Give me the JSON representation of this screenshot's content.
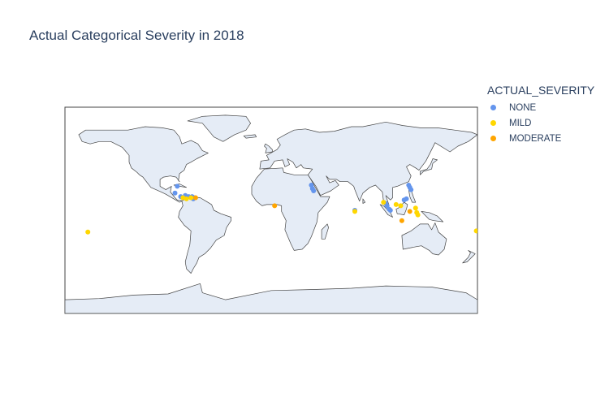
{
  "chart_data": {
    "type": "scatter",
    "projection": "equirectangular",
    "title": "Actual Categorical Severity in 2018",
    "legend": {
      "title": "ACTUAL_SEVERITY",
      "placement": "right"
    },
    "land_color": "#e5ecf6",
    "coastline_color": "#444444",
    "lon_range": [
      -180,
      180
    ],
    "lat_range": [
      -90,
      90
    ],
    "series": [
      {
        "name": "NONE",
        "color": "#6495ed",
        "points": [
          {
            "lon": -82,
            "lat": 21
          },
          {
            "lon": -84,
            "lat": 15
          },
          {
            "lon": -75,
            "lat": 13
          },
          {
            "lon": -72,
            "lat": 12
          },
          {
            "lon": -69,
            "lat": 12
          },
          {
            "lon": -68,
            "lat": 10
          },
          {
            "lon": -67,
            "lat": 11
          },
          {
            "lon": -79,
            "lat": 12
          },
          {
            "lon": 35,
            "lat": 22
          },
          {
            "lon": 36,
            "lat": 19
          },
          {
            "lon": 37,
            "lat": 17
          },
          {
            "lon": 120,
            "lat": 22
          },
          {
            "lon": 121,
            "lat": 20
          },
          {
            "lon": 122,
            "lat": 18
          },
          {
            "lon": 118,
            "lat": 10
          },
          {
            "lon": 116,
            "lat": 9
          },
          {
            "lon": 100,
            "lat": 6
          },
          {
            "lon": 101,
            "lat": 4
          },
          {
            "lon": 103,
            "lat": 1
          },
          {
            "lon": 104,
            "lat": 0
          },
          {
            "lon": 73,
            "lat": 0
          }
        ]
      },
      {
        "name": "MILD",
        "color": "#ffd700",
        "points": [
          {
            "lon": -77,
            "lat": 11
          },
          {
            "lon": -74,
            "lat": 10
          },
          {
            "lon": -70,
            "lat": 11
          },
          {
            "lon": 73,
            "lat": -1
          },
          {
            "lon": 98,
            "lat": 7
          },
          {
            "lon": 109,
            "lat": 5
          },
          {
            "lon": 113,
            "lat": 4
          },
          {
            "lon": 126,
            "lat": 2
          },
          {
            "lon": 127,
            "lat": -2
          },
          {
            "lon": 128,
            "lat": -4
          },
          {
            "lon": -160,
            "lat": -19
          },
          {
            "lon": 179,
            "lat": -18
          }
        ]
      },
      {
        "name": "MODERATE",
        "color": "#ffa500",
        "points": [
          {
            "lon": -66,
            "lat": 11
          },
          {
            "lon": 3,
            "lat": 4
          },
          {
            "lon": 114,
            "lat": -9
          },
          {
            "lon": 121,
            "lat": -1
          }
        ]
      }
    ]
  }
}
